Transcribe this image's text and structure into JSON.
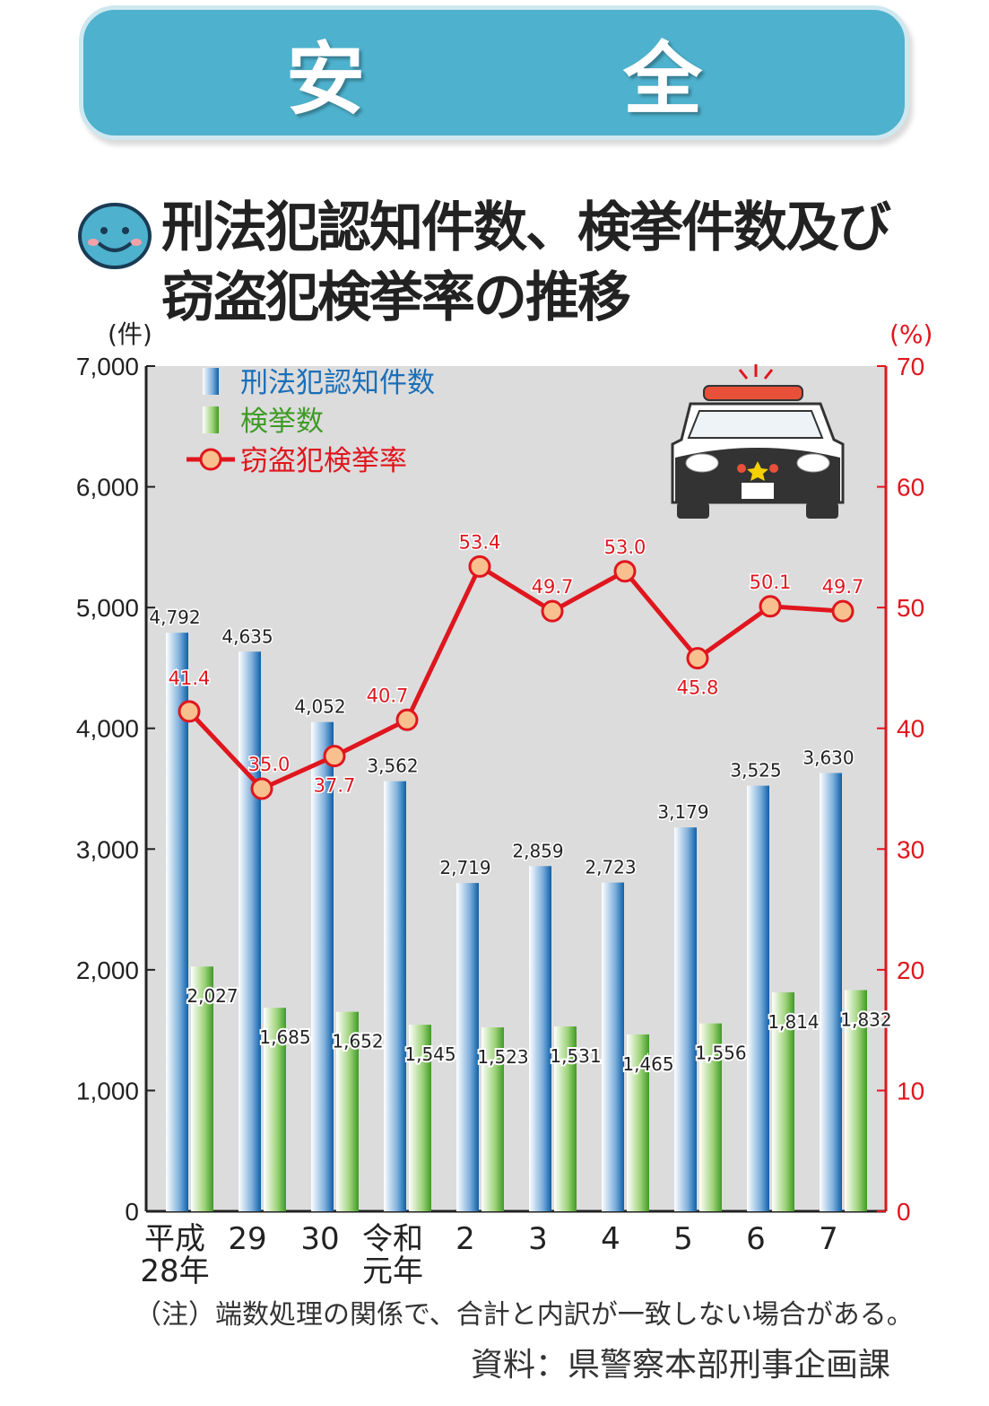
{
  "header": {
    "title": "安　全"
  },
  "chart_data": {
    "type": "bar+line",
    "title": "刑法犯認知件数、検挙件数及び窃盗犯検挙率の推移",
    "ylabel_left": "(件)",
    "ylabel_right": "(%)",
    "ylim_left": [
      0,
      7000
    ],
    "ylim_right": [
      0,
      70
    ],
    "yticks_left": [
      "0",
      "1,000",
      "2,000",
      "3,000",
      "4,000",
      "5,000",
      "6,000",
      "7,000"
    ],
    "yticks_right": [
      "0",
      "10",
      "20",
      "30",
      "40",
      "50",
      "60",
      "70"
    ],
    "categories": [
      "平成28年",
      "29",
      "30",
      "令和元年",
      "2",
      "3",
      "4",
      "5",
      "6",
      "7"
    ],
    "legend_placement": "top-left",
    "series": [
      {
        "name": "刑法犯認知件数",
        "type": "bar",
        "axis": "left",
        "color": "#1a6fb8",
        "values": [
          4792,
          4635,
          4052,
          3562,
          2719,
          2859,
          2723,
          3179,
          3525,
          3630
        ],
        "labels": [
          "4,792",
          "4,635",
          "4,052",
          "3,562",
          "2,719",
          "2,859",
          "2,723",
          "3,179",
          "3,525",
          "3,630"
        ]
      },
      {
        "name": "検挙数",
        "type": "bar",
        "axis": "left",
        "color": "#5fb538",
        "values": [
          2027,
          1685,
          1652,
          1545,
          1523,
          1531,
          1465,
          1556,
          1814,
          1832
        ],
        "labels": [
          "2,027",
          "1,685",
          "1,652",
          "1,545",
          "1,523",
          "1,531",
          "1,465",
          "1,556",
          "1,814",
          "1,832"
        ]
      },
      {
        "name": "窃盗犯検挙率",
        "type": "line",
        "axis": "right",
        "color": "#e0161e",
        "values": [
          41.4,
          35.0,
          37.7,
          40.7,
          53.4,
          49.7,
          53.0,
          45.8,
          50.1,
          49.7
        ],
        "labels": [
          "41.4",
          "35.0",
          "37.7",
          "40.7",
          "53.4",
          "49.7",
          "53.0",
          "45.8",
          "50.1",
          "49.7"
        ]
      }
    ]
  },
  "footer": {
    "note": "（注）端数処理の関係で、合計と内訳が一致しない場合がある。",
    "source": "資料：県警察本部刑事企画課"
  }
}
